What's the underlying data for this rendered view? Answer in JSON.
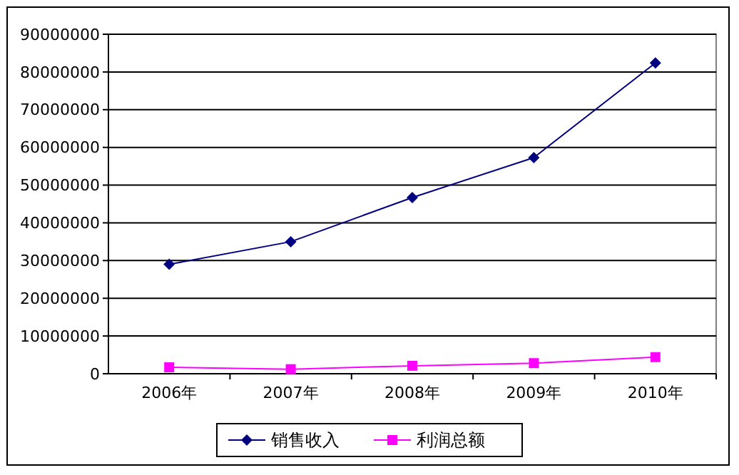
{
  "chart_data": {
    "type": "line",
    "categories": [
      "2006年",
      "2007年",
      "2008年",
      "2009年",
      "2010年"
    ],
    "series": [
      {
        "name": "销售收入",
        "color": "#000080",
        "values": [
          29000000,
          35000000,
          46700000,
          57300000,
          82400000
        ],
        "marker": "diamond"
      },
      {
        "name": "利润总额",
        "color": "#ff00ff",
        "values": [
          1700000,
          1200000,
          2100000,
          2800000,
          4400000
        ],
        "marker": "square"
      }
    ],
    "ylim": [
      0,
      90000000
    ],
    "yticks": [
      0,
      10000000,
      20000000,
      30000000,
      40000000,
      50000000,
      60000000,
      70000000,
      80000000,
      90000000
    ],
    "grid": "y",
    "legend": "bottom"
  }
}
